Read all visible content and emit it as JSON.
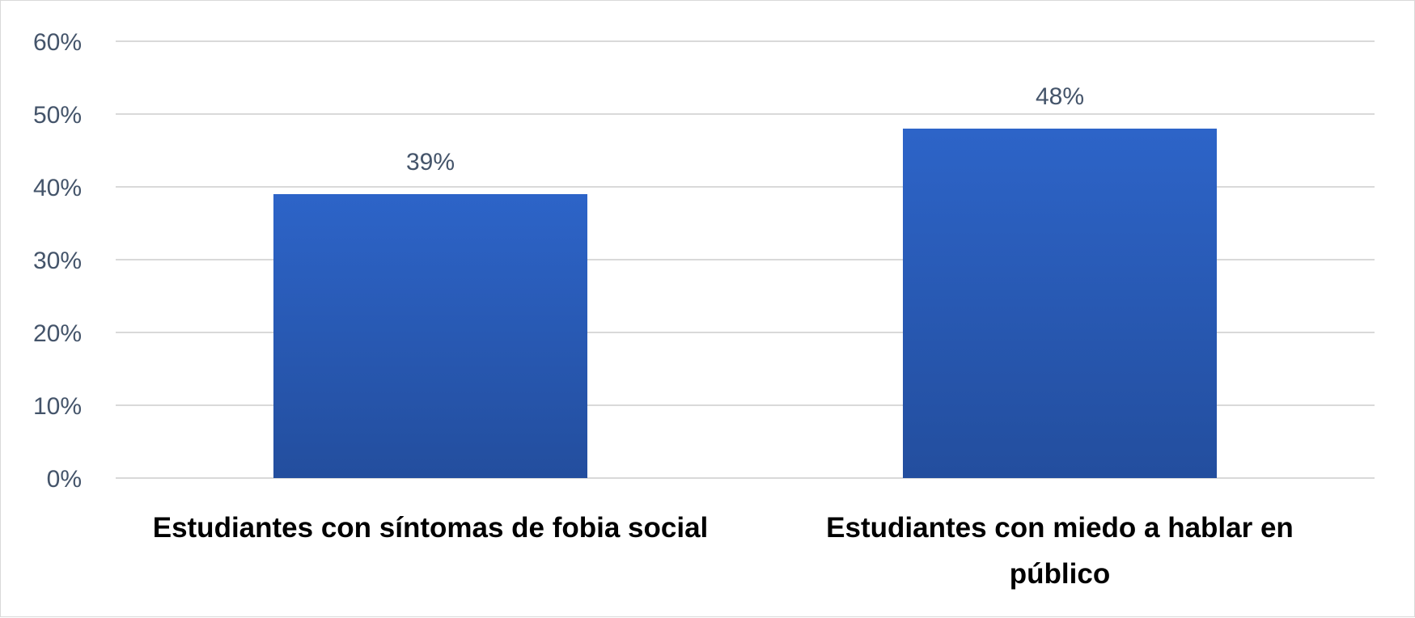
{
  "chart_data": {
    "type": "bar",
    "categories": [
      "Estudiantes con síntomas de fobia social",
      "Estudiantes con miedo a hablar en público"
    ],
    "values": [
      39,
      48
    ],
    "data_labels": [
      "39%",
      "48%"
    ],
    "y_ticks": [
      "0%",
      "10%",
      "20%",
      "30%",
      "40%",
      "50%",
      "60%"
    ],
    "ylim": [
      0,
      60
    ],
    "y_tick_step": 10,
    "grid": true,
    "legend": "none",
    "bar_color": "#2d64c8",
    "bar_color_bottom": "#234e9e"
  }
}
